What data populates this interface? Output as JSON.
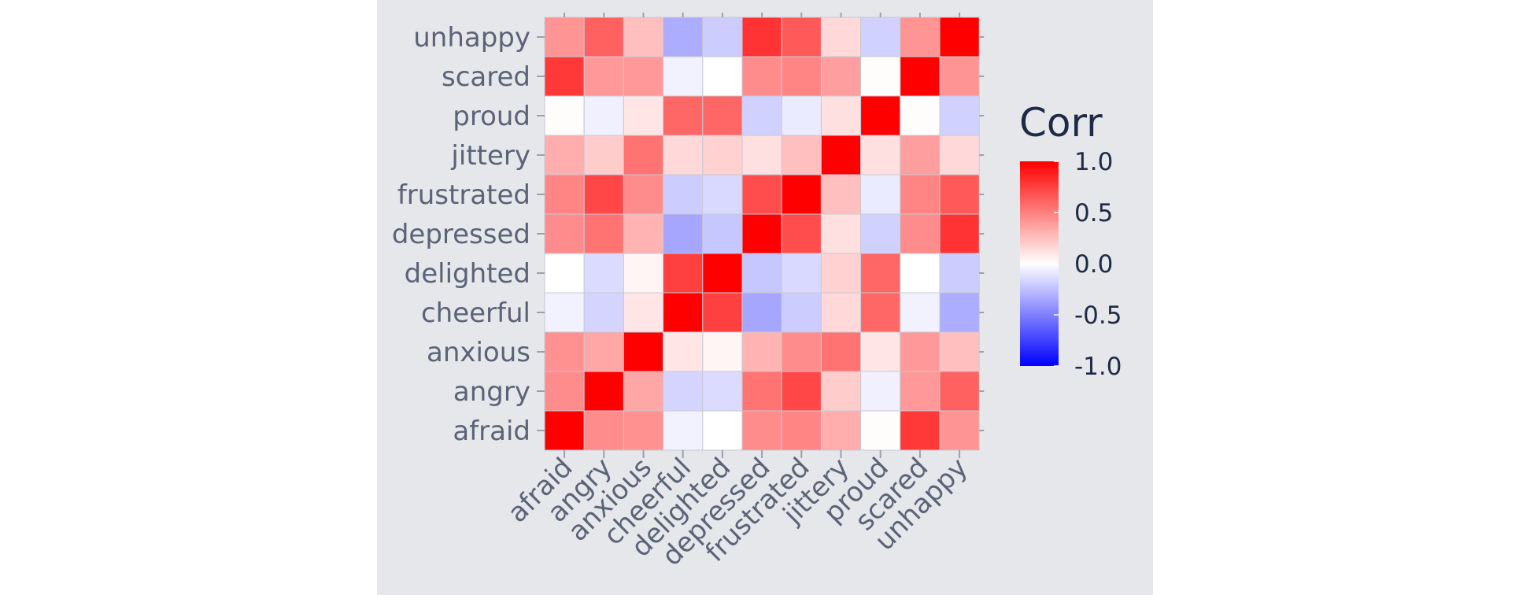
{
  "chart_data": {
    "type": "heatmap",
    "x_labels": [
      "afraid",
      "angry",
      "anxious",
      "cheerful",
      "delighted",
      "depressed",
      "frustrated",
      "jittery",
      "proud",
      "scared",
      "unhappy"
    ],
    "y_labels": [
      "afraid",
      "angry",
      "anxious",
      "cheerful",
      "delighted",
      "depressed",
      "frustrated",
      "jittery",
      "proud",
      "scared",
      "unhappy"
    ],
    "rows_top_to_bottom": [
      "unhappy",
      "scared",
      "proud",
      "jittery",
      "frustrated",
      "depressed",
      "delighted",
      "cheerful",
      "anxious",
      "angry",
      "afraid"
    ],
    "matrix": [
      [
        1.0,
        0.45,
        0.43,
        -0.05,
        0.0,
        0.45,
        0.48,
        0.32,
        0.01,
        0.78,
        0.42
      ],
      [
        0.45,
        1.0,
        0.35,
        -0.17,
        -0.14,
        0.55,
        0.72,
        0.2,
        -0.06,
        0.4,
        0.62
      ],
      [
        0.43,
        0.35,
        1.0,
        0.1,
        0.04,
        0.3,
        0.45,
        0.55,
        0.1,
        0.4,
        0.25
      ],
      [
        -0.05,
        -0.17,
        0.1,
        1.0,
        0.75,
        -0.35,
        -0.2,
        0.15,
        0.6,
        -0.05,
        -0.32
      ],
      [
        0.0,
        -0.14,
        0.04,
        0.75,
        1.0,
        -0.22,
        -0.15,
        0.18,
        0.6,
        0.0,
        -0.2
      ],
      [
        0.45,
        0.55,
        0.3,
        -0.35,
        -0.22,
        1.0,
        0.7,
        0.12,
        -0.18,
        0.45,
        0.8
      ],
      [
        0.48,
        0.72,
        0.45,
        -0.2,
        -0.15,
        0.7,
        1.0,
        0.25,
        -0.08,
        0.48,
        0.65
      ],
      [
        0.32,
        0.2,
        0.55,
        0.15,
        0.18,
        0.12,
        0.25,
        1.0,
        0.12,
        0.38,
        0.15
      ],
      [
        0.01,
        -0.06,
        0.1,
        0.6,
        0.6,
        -0.18,
        -0.08,
        0.12,
        1.0,
        0.01,
        -0.18
      ],
      [
        0.78,
        0.4,
        0.4,
        -0.05,
        0.0,
        0.45,
        0.48,
        0.38,
        0.01,
        1.0,
        0.42
      ],
      [
        0.42,
        0.62,
        0.25,
        -0.32,
        -0.2,
        0.8,
        0.65,
        0.15,
        -0.18,
        0.42,
        1.0
      ]
    ],
    "color_range": [
      -1.0,
      1.0
    ],
    "colorscale": [
      "#0000ff",
      "#ffffff",
      "#ff0000"
    ],
    "legend": {
      "title": "Corr",
      "ticks": [
        "1.0",
        "0.5",
        "0.0",
        "-0.5",
        "-1.0"
      ],
      "tick_values": [
        1.0,
        0.5,
        0.0,
        -0.5,
        -1.0
      ],
      "placement": "right"
    },
    "grid": false
  }
}
